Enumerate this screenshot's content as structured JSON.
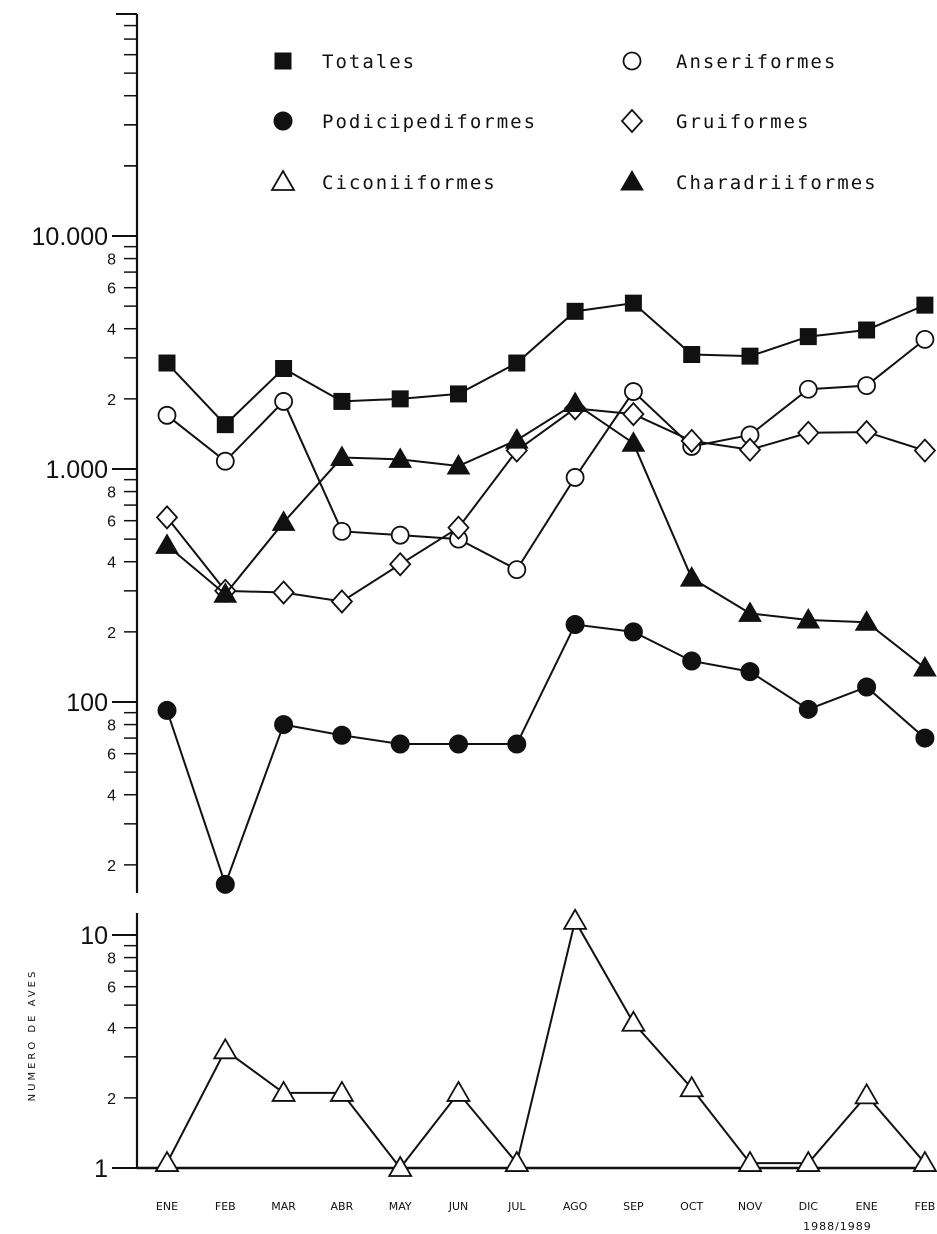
{
  "chart_data": {
    "type": "line",
    "yscale": "log",
    "ylim": [
      1,
      30000
    ],
    "ylabel": "NUMERO DE AVES",
    "xlabel_sub": "1988/1989",
    "categories": [
      "ENE",
      "FEB",
      "MAR",
      "ABR",
      "MAY",
      "JUN",
      "JUL",
      "AGO",
      "SEP",
      "OCT",
      "NOV",
      "DIC",
      "ENE",
      "FEB"
    ],
    "y_major_labels": [
      {
        "value": 1,
        "label": "1"
      },
      {
        "value": 10,
        "label": "10"
      },
      {
        "value": 100,
        "label": "100"
      },
      {
        "value": 1000,
        "label": "1.000"
      },
      {
        "value": 10000,
        "label": "10.000"
      }
    ],
    "y_minor_labels": [
      "2",
      "4",
      "6",
      "8"
    ],
    "series": [
      {
        "name": "Totales",
        "marker": "filled-square",
        "values": [
          2850,
          1550,
          2700,
          1950,
          2000,
          2100,
          2850,
          4750,
          5150,
          3100,
          3050,
          3700,
          3950,
          5050
        ]
      },
      {
        "name": "Anseriformes",
        "marker": "open-circle",
        "values": [
          1700,
          1080,
          1950,
          540,
          520,
          500,
          370,
          920,
          2150,
          1250,
          1400,
          2200,
          2280,
          3600
        ]
      },
      {
        "name": "Podicipediformes",
        "marker": "filled-circle",
        "values": [
          92,
          16.5,
          80,
          72,
          66,
          66,
          66,
          215,
          200,
          150,
          135,
          93,
          116,
          70
        ]
      },
      {
        "name": "Gruiformes",
        "marker": "open-diamond",
        "values": [
          620,
          300,
          295,
          270,
          390,
          560,
          1200,
          1820,
          1720,
          1320,
          1210,
          1430,
          1440,
          1200
        ]
      },
      {
        "name": "Ciconiiformes",
        "marker": "open-triangle",
        "values": [
          1.05,
          3.2,
          2.1,
          2.1,
          1,
          2.1,
          1.05,
          11.5,
          4.2,
          2.2,
          1.05,
          1.05,
          2.05,
          1.05
        ]
      },
      {
        "name": "Charadriiformes",
        "marker": "filled-triangle",
        "values": [
          470,
          290,
          590,
          1120,
          1100,
          1030,
          1330,
          1910,
          1290,
          340,
          240,
          225,
          220,
          140
        ]
      }
    ],
    "legend": {
      "placement": "top",
      "items": [
        "Totales",
        "Anseriformes",
        "Podicipediformes",
        "Gruiformes",
        "Ciconiiformes",
        "Charadriiformes"
      ]
    },
    "grid": false
  }
}
